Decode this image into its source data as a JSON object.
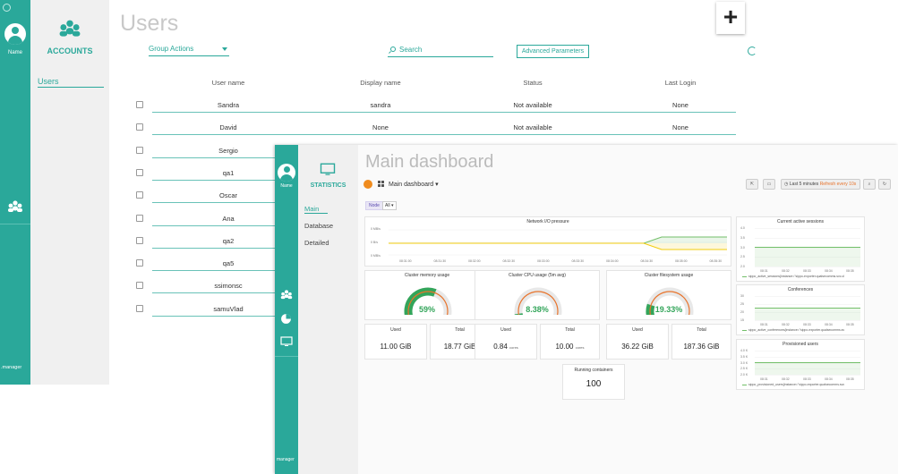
{
  "accounts": {
    "rail": {
      "user_label": "Name",
      "brand": ".manager"
    },
    "sidebar": {
      "title": "ACCOUNTS",
      "items": [
        {
          "label": "Users"
        }
      ]
    },
    "header": {
      "title": "Users",
      "group_actions": "Group Actions",
      "search_placeholder": "Search",
      "advanced": "Advanced Parameters"
    },
    "table": {
      "columns": [
        "User name",
        "Display name",
        "Status",
        "Last Login"
      ],
      "rows": [
        {
          "user": "Sandra",
          "display": "sandra",
          "status": "Not available",
          "last": "None"
        },
        {
          "user": "David",
          "display": "None",
          "status": "Not available",
          "last": "None"
        },
        {
          "user": "Sergio"
        },
        {
          "user": "qa1"
        },
        {
          "user": "Oscar"
        },
        {
          "user": "Ana"
        },
        {
          "user": "qa2"
        },
        {
          "user": "qa5"
        },
        {
          "user": "ssimonsc"
        },
        {
          "user": "samuVlad"
        }
      ]
    }
  },
  "dashboard": {
    "rail": {
      "user_label": "Name",
      "brand": "manager"
    },
    "sidebar": {
      "title": "STATISTICS",
      "items": [
        {
          "label": "Main",
          "active": true
        },
        {
          "label": "Database"
        },
        {
          "label": "Detailed"
        }
      ]
    },
    "title": "Main dashboard",
    "toolbar": {
      "dash_name": "Main dashboard",
      "time_range": "Last 5 minutes",
      "refresh": "Refresh every 10s"
    },
    "variable": {
      "label": "Node",
      "value": "All"
    },
    "network_panel": {
      "title": "Network I/O pressure",
      "y_ticks": [
        "0 MB/s",
        "0 B/s",
        "0 MB/s"
      ],
      "x_ticks": [
        "08:31:00",
        "08:31:30",
        "08:32:00",
        "08:32:30",
        "08:33:00",
        "08:33:30",
        "08:34:00",
        "08:34:30",
        "08:35:00",
        "08:35:30"
      ]
    },
    "gauges": [
      {
        "title": "Cluster memory usage",
        "value": "59%",
        "fraction": 0.59
      },
      {
        "title": "Cluster CPU usage (5m avg)",
        "value": "8.38%",
        "fraction": 0.0838
      },
      {
        "title": "Cluster filesystem usage",
        "value": "19.33%",
        "fraction": 0.1933
      }
    ],
    "stats": [
      {
        "title": "Used",
        "value": "11.00 GiB",
        "unit": ""
      },
      {
        "title": "Total",
        "value": "18.77 GiB",
        "unit": ""
      },
      {
        "title": "Used",
        "value": "0.84",
        "unit": "cores"
      },
      {
        "title": "Total",
        "value": "10.00",
        "unit": "cores"
      },
      {
        "title": "Used",
        "value": "36.22 GiB",
        "unit": ""
      },
      {
        "title": "Total",
        "value": "187.36 GiB",
        "unit": ""
      }
    ],
    "running": {
      "title": "Running containers",
      "value": "100"
    },
    "side_panels": [
      {
        "title": "Current active sessions",
        "y_ticks": [
          "4.0",
          "3.5",
          "3.0",
          "2.5",
          "2.0"
        ],
        "x_ticks": [
          "08:31",
          "08:32",
          "08:33",
          "08:34",
          "08:35"
        ],
        "legend": "sippo_active_sessions{instance=\"sippo-exporter.qualsecomms.svc.cl"
      },
      {
        "title": "Conferences",
        "y_ticks": [
          "30",
          "25",
          "20",
          "15"
        ],
        "x_ticks": [
          "08:31",
          "08:32",
          "08:33",
          "08:34",
          "08:35"
        ],
        "legend": "sippo_active_conferences{instance=\"sippo-exporter.qualsecomms.sv"
      },
      {
        "title": "Provisioned users",
        "y_ticks": [
          "4.0 K",
          "3.5 K",
          "3.0 K",
          "2.5 K",
          "2.0 K"
        ],
        "x_ticks": [
          "08:31",
          "08:32",
          "08:33",
          "08:34",
          "08:35"
        ],
        "legend": "sippo_provisioned_users{instance=\"sippo-exporter.qualsecomms.svc"
      }
    ]
  },
  "colors": {
    "accent": "#2aa89a",
    "gauge": "#33a55a",
    "network_green": "#73bf69",
    "network_yellow": "#f2cc0c",
    "grafana_orange": "#f08c1e"
  }
}
